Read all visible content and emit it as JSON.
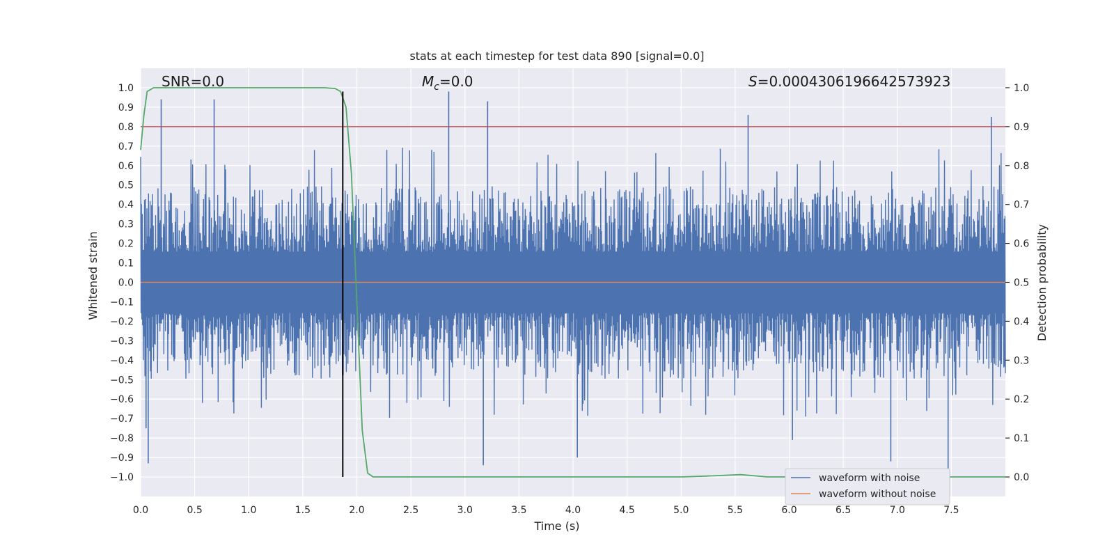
{
  "chart_data": {
    "type": "line",
    "title": "stats at each timestep for test data 890 [signal=0.0]",
    "xlabel": "Time (s)",
    "ylabel": "Whitened strain",
    "y2label": "Detection probability",
    "xlim": [
      0.0,
      8.0
    ],
    "ylim": [
      -1.1,
      1.1
    ],
    "y2lim": [
      -0.05,
      1.05
    ],
    "x_ticks": [
      0.0,
      0.5,
      1.0,
      1.5,
      2.0,
      2.5,
      3.0,
      3.5,
      4.0,
      4.5,
      5.0,
      5.5,
      6.0,
      6.5,
      7.0,
      7.5
    ],
    "x_tick_labels": [
      "0.0",
      "0.5",
      "1.0",
      "1.5",
      "2.0",
      "2.5",
      "3.0",
      "3.5",
      "4.0",
      "4.5",
      "5.0",
      "5.5",
      "6.0",
      "6.5",
      "7.0",
      "7.5"
    ],
    "y_ticks": [
      1.0,
      0.9,
      0.8,
      0.7,
      0.6,
      0.5,
      0.4,
      0.3,
      0.2,
      0.1,
      0.0,
      -0.1,
      -0.2,
      -0.3,
      -0.4,
      -0.5,
      -0.6,
      -0.7,
      -0.8,
      -0.9,
      -1.0
    ],
    "y_tick_labels": [
      "1.0",
      "0.9",
      "0.8",
      "0.7",
      "0.6",
      "0.5",
      "0.4",
      "0.3",
      "0.2",
      "0.1",
      "0.0",
      "−0.1",
      "−0.2",
      "−0.3",
      "−0.4",
      "−0.5",
      "−0.6",
      "−0.7",
      "−0.8",
      "−0.9",
      "−1.0"
    ],
    "y2_ticks": [
      1.0,
      0.9,
      0.8,
      0.7,
      0.6,
      0.5,
      0.4,
      0.3,
      0.2,
      0.1,
      0.0
    ],
    "y2_tick_labels": [
      "1.0",
      "0.9",
      "0.8",
      "0.7",
      "0.6",
      "0.5",
      "0.4",
      "0.3",
      "0.2",
      "0.1",
      "0.0"
    ],
    "grid": true,
    "legend_position": "lower-right",
    "annotations": {
      "snr": "SNR=0.0",
      "mc_symbol": "M",
      "mc_sub": "c",
      "mc_value": "=0.0",
      "s_symbol": "S",
      "s_value": "=0.0004306196642573923"
    },
    "series": [
      {
        "name": "waveform with noise",
        "axis": "left",
        "color": "#4c72b0",
        "kind": "noise",
        "envelope_typical": [
          -0.45,
          0.45
        ],
        "peaks": [
          {
            "x": 0.05,
            "y": -0.75
          },
          {
            "x": 0.07,
            "y": -0.93
          },
          {
            "x": 0.19,
            "y": 0.94
          },
          {
            "x": 0.68,
            "y": 0.94
          },
          {
            "x": 2.85,
            "y": 0.98
          },
          {
            "x": 3.17,
            "y": -0.94
          },
          {
            "x": 3.21,
            "y": 0.93
          },
          {
            "x": 4.04,
            "y": -0.9
          },
          {
            "x": 5.62,
            "y": 0.86
          },
          {
            "x": 6.03,
            "y": -0.81
          },
          {
            "x": 6.94,
            "y": -0.92
          },
          {
            "x": 7.47,
            "y": -0.99
          },
          {
            "x": 7.87,
            "y": 0.85
          }
        ]
      },
      {
        "name": "waveform without noise",
        "axis": "left",
        "color": "#dd8452",
        "x": [
          0.0,
          8.0
        ],
        "y": [
          0.0,
          0.0
        ]
      },
      {
        "name": "",
        "axis": "right",
        "color": "#55a868",
        "x": [
          0.0,
          0.03,
          0.06,
          0.12,
          0.2,
          0.5,
          1.0,
          1.5,
          1.7,
          1.8,
          1.85,
          1.9,
          1.95,
          2.0,
          2.05,
          2.1,
          2.15,
          2.3,
          3.0,
          4.0,
          5.0,
          5.3,
          5.55,
          5.8,
          6.5,
          7.0,
          8.0
        ],
        "y": [
          0.84,
          0.93,
          0.99,
          1.0,
          1.0,
          1.0,
          1.0,
          1.0,
          1.0,
          0.998,
          0.99,
          0.95,
          0.78,
          0.45,
          0.12,
          0.01,
          0.0,
          0.0,
          0.0,
          0.0,
          0.0,
          0.003,
          0.006,
          0.0,
          0.0,
          0.0,
          0.0
        ]
      }
    ],
    "hlines": [
      {
        "axis": "right",
        "y": 0.9,
        "color": "#c44e52"
      }
    ],
    "vlines": [
      {
        "x": 1.87,
        "y_range": [
          -1.0,
          0.98
        ],
        "color": "#000000"
      }
    ]
  }
}
